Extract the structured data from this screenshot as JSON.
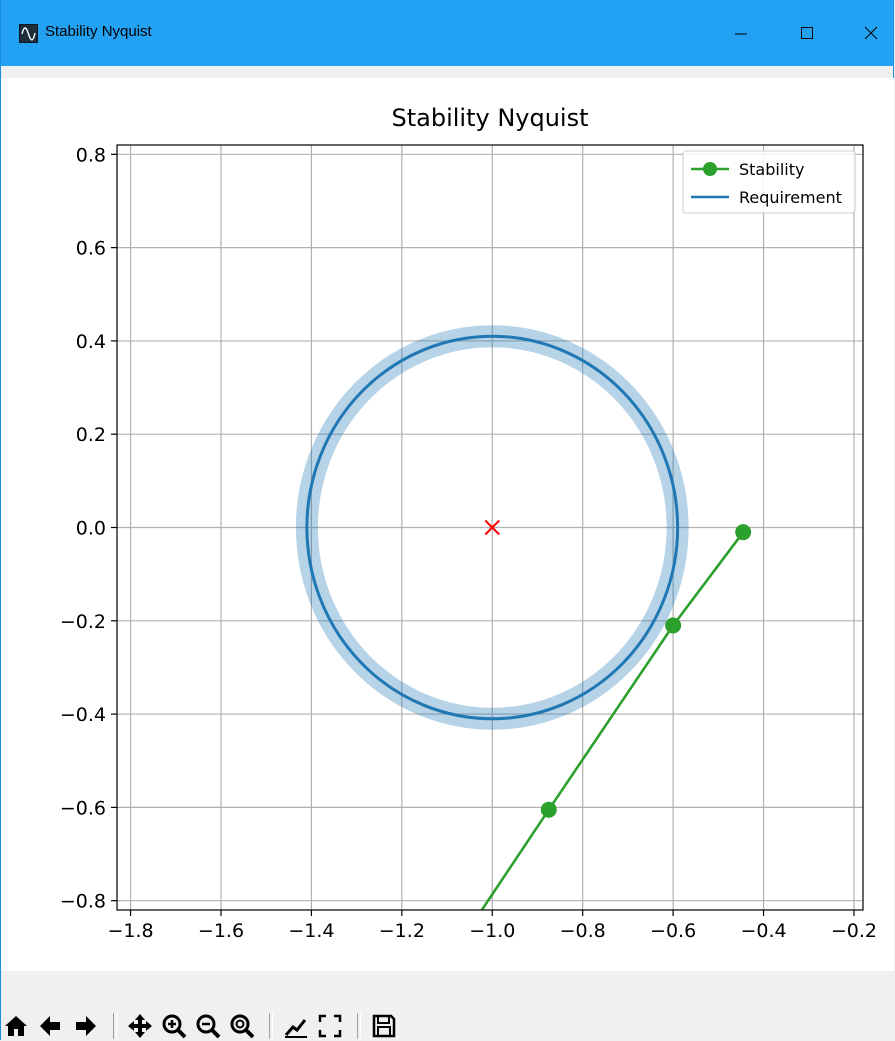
{
  "window": {
    "title": "Stability Nyquist",
    "app_icon": "sine-wave-icon",
    "controls": [
      "minimize-icon",
      "maximize-icon",
      "close-icon"
    ]
  },
  "toolbar": {
    "buttons": [
      "home-icon",
      "back-arrow-icon",
      "forward-arrow-icon",
      "pan-icon",
      "zoom-in-icon",
      "zoom-out-icon",
      "zoom-fit-icon",
      "subplots-icon",
      "fullscreen-icon",
      "save-icon"
    ]
  },
  "chart_data": {
    "type": "line",
    "title": "Stability Nyquist",
    "xlabel": "",
    "ylabel": "",
    "xlim": [
      -1.83,
      -0.18
    ],
    "ylim": [
      -0.82,
      0.82
    ],
    "xticks": [
      "−1.8",
      "−1.6",
      "−1.4",
      "−1.2",
      "−1.0",
      "−0.8",
      "−0.6",
      "−0.4",
      "−0.2"
    ],
    "xtick_values": [
      -1.8,
      -1.6,
      -1.4,
      -1.2,
      -1.0,
      -0.8,
      -0.6,
      -0.4,
      -0.2
    ],
    "yticks": [
      "0.8",
      "0.6",
      "0.4",
      "0.2",
      "0.0",
      "−0.2",
      "−0.4",
      "−0.6",
      "−0.8"
    ],
    "ytick_values": [
      0.8,
      0.6,
      0.4,
      0.2,
      0.0,
      -0.2,
      -0.4,
      -0.6,
      -0.8
    ],
    "grid": true,
    "legend_position": "top-right",
    "legend": [
      "Stability",
      "Requirement"
    ],
    "series": [
      {
        "name": "Stability",
        "color": "#2ca02c",
        "marker": "circle",
        "points": [
          [
            -1.03,
            -0.83
          ],
          [
            -0.875,
            -0.605
          ],
          [
            -0.6,
            -0.21
          ],
          [
            -0.445,
            -0.01
          ]
        ],
        "markers": [
          [
            -0.875,
            -0.605
          ],
          [
            -0.6,
            -0.21
          ],
          [
            -0.445,
            -0.01
          ]
        ]
      },
      {
        "name": "Requirement",
        "color": "#1f77b4",
        "shape": "circle",
        "center": [
          -1.0,
          0.0
        ],
        "radius": 0.41
      }
    ],
    "center_marker": {
      "point": [
        -1.0,
        0.0
      ],
      "color": "#ff0000",
      "marker": "x"
    },
    "band_color": "#1f77b4"
  }
}
